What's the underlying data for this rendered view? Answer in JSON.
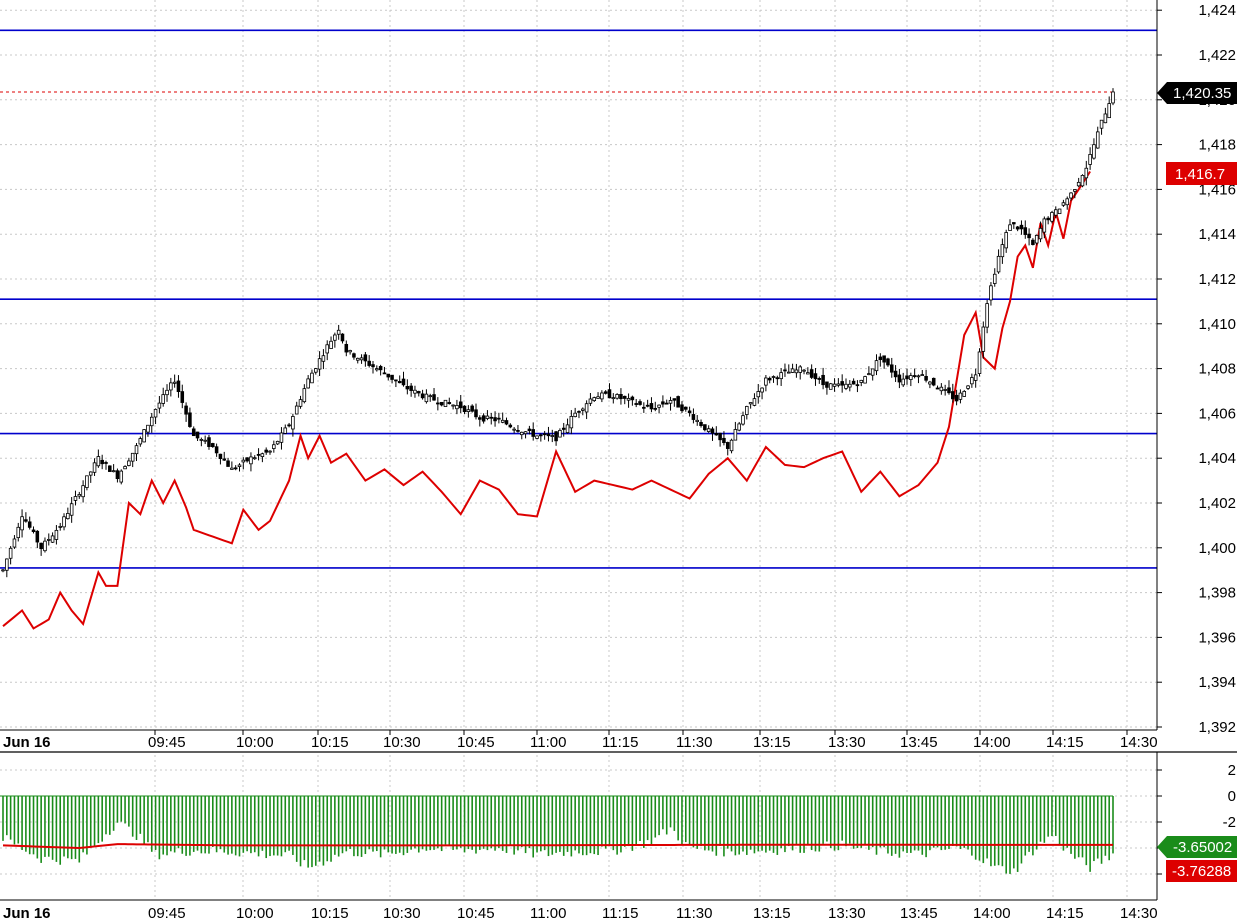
{
  "chart_data": [
    {
      "type": "candlestick",
      "date_label": "Jun 16",
      "x_tick_labels": [
        "09:45",
        "10:00",
        "10:15",
        "10:30",
        "10:45",
        "11:00",
        "11:15",
        "11:30",
        "13:15",
        "13:30",
        "13:45",
        "14:00",
        "14:15",
        "14:30"
      ],
      "y_tick_labels": [
        "1,424",
        "1,422",
        "1,420",
        "1,418",
        "1,416",
        "1,414",
        "1,412",
        "1,410",
        "1,408",
        "1,406",
        "1,404",
        "1,402",
        "1,400",
        "1,398",
        "1,396",
        "1,394",
        "1,392"
      ],
      "ylim": [
        1391,
        1425
      ],
      "grid": true,
      "horizontal_lines": [
        1423.1,
        1411.1,
        1405.1,
        1399.1
      ],
      "last_price": 1420.35,
      "last_price_label": "1,420.35",
      "close_anchors": [
        [
          0,
          1399.0
        ],
        [
          5,
          1401.5
        ],
        [
          10,
          1400.0
        ],
        [
          15,
          1401.0
        ],
        [
          20,
          1402.5
        ],
        [
          25,
          1404.0
        ],
        [
          30,
          1403.2
        ],
        [
          35,
          1404.5
        ],
        [
          40,
          1406.2
        ],
        [
          45,
          1407.5
        ],
        [
          48,
          1406.0
        ],
        [
          50,
          1405.0
        ],
        [
          55,
          1404.5
        ],
        [
          60,
          1403.5
        ],
        [
          65,
          1404.0
        ],
        [
          70,
          1404.3
        ],
        [
          75,
          1405.5
        ],
        [
          80,
          1407.5
        ],
        [
          85,
          1409.0
        ],
        [
          88,
          1409.8
        ],
        [
          90,
          1408.8
        ],
        [
          95,
          1408.3
        ],
        [
          100,
          1407.8
        ],
        [
          105,
          1407.2
        ],
        [
          110,
          1406.8
        ],
        [
          115,
          1406.5
        ],
        [
          120,
          1406.3
        ],
        [
          125,
          1405.8
        ],
        [
          130,
          1405.7
        ],
        [
          135,
          1405.3
        ],
        [
          140,
          1405.0
        ],
        [
          145,
          1404.9
        ],
        [
          150,
          1406.0
        ],
        [
          155,
          1406.8
        ],
        [
          160,
          1406.8
        ],
        [
          165,
          1406.5
        ],
        [
          170,
          1406.2
        ],
        [
          175,
          1406.6
        ],
        [
          180,
          1406.0
        ],
        [
          185,
          1405.2
        ],
        [
          190,
          1404.5
        ],
        [
          195,
          1406.2
        ],
        [
          200,
          1407.5
        ],
        [
          205,
          1407.8
        ],
        [
          210,
          1408.0
        ],
        [
          215,
          1407.3
        ],
        [
          220,
          1407.2
        ],
        [
          225,
          1407.4
        ],
        [
          230,
          1408.5
        ],
        [
          235,
          1407.5
        ],
        [
          240,
          1407.8
        ],
        [
          245,
          1407.2
        ],
        [
          250,
          1406.6
        ],
        [
          255,
          1407.8
        ],
        [
          258,
          1411.0
        ],
        [
          261,
          1413.0
        ],
        [
          264,
          1414.5
        ],
        [
          267,
          1414.2
        ],
        [
          270,
          1413.5
        ],
        [
          273,
          1414.6
        ],
        [
          276,
          1415.0
        ],
        [
          280,
          1415.8
        ],
        [
          284,
          1417.0
        ],
        [
          288,
          1419.0
        ],
        [
          291,
          1420.35
        ]
      ],
      "series": [
        {
          "name": "",
          "color": "#dd0000",
          "last_value_label": "1,416.7",
          "anchors": [
            [
              0,
              1396.5
            ],
            [
              5,
              1397.2
            ],
            [
              8,
              1396.4
            ],
            [
              12,
              1396.8
            ],
            [
              15,
              1398.0
            ],
            [
              18,
              1397.2
            ],
            [
              21,
              1396.6
            ],
            [
              25,
              1398.9
            ],
            [
              27,
              1398.3
            ],
            [
              30,
              1398.3
            ],
            [
              33,
              1402.0
            ],
            [
              36,
              1401.5
            ],
            [
              39,
              1403.0
            ],
            [
              42,
              1402.0
            ],
            [
              45,
              1403.0
            ],
            [
              48,
              1401.8
            ],
            [
              50,
              1400.8
            ],
            [
              55,
              1400.5
            ],
            [
              60,
              1400.2
            ],
            [
              63,
              1401.7
            ],
            [
              67,
              1400.8
            ],
            [
              70,
              1401.2
            ],
            [
              75,
              1403.0
            ],
            [
              78,
              1405.0
            ],
            [
              80,
              1404.0
            ],
            [
              83,
              1405.0
            ],
            [
              86,
              1403.8
            ],
            [
              90,
              1404.2
            ],
            [
              95,
              1403.0
            ],
            [
              100,
              1403.5
            ],
            [
              105,
              1402.8
            ],
            [
              110,
              1403.4
            ],
            [
              115,
              1402.5
            ],
            [
              120,
              1401.5
            ],
            [
              125,
              1403.0
            ],
            [
              130,
              1402.6
            ],
            [
              135,
              1401.5
            ],
            [
              140,
              1401.4
            ],
            [
              145,
              1404.3
            ],
            [
              150,
              1402.5
            ],
            [
              155,
              1403.0
            ],
            [
              160,
              1402.8
            ],
            [
              165,
              1402.6
            ],
            [
              170,
              1403.0
            ],
            [
              175,
              1402.6
            ],
            [
              180,
              1402.2
            ],
            [
              185,
              1403.3
            ],
            [
              190,
              1404.0
            ],
            [
              195,
              1403.0
            ],
            [
              200,
              1404.5
            ],
            [
              205,
              1403.7
            ],
            [
              210,
              1403.6
            ],
            [
              215,
              1404.0
            ],
            [
              220,
              1404.3
            ],
            [
              225,
              1402.5
            ],
            [
              230,
              1403.4
            ],
            [
              235,
              1402.3
            ],
            [
              240,
              1402.8
            ],
            [
              245,
              1403.8
            ],
            [
              248,
              1405.4
            ],
            [
              252,
              1409.5
            ],
            [
              255,
              1410.5
            ],
            [
              257,
              1408.5
            ],
            [
              260,
              1408.0
            ],
            [
              262,
              1409.8
            ],
            [
              264,
              1411.0
            ],
            [
              266,
              1413.0
            ],
            [
              268,
              1413.5
            ],
            [
              270,
              1412.5
            ],
            [
              272,
              1414.5
            ],
            [
              274,
              1413.5
            ],
            [
              276,
              1415.0
            ],
            [
              278,
              1413.8
            ],
            [
              280,
              1415.5
            ],
            [
              282,
              1416.0
            ],
            [
              285,
              1416.8
            ]
          ]
        }
      ]
    },
    {
      "type": "bar",
      "x_tick_labels": [
        "09:45",
        "10:00",
        "10:15",
        "10:30",
        "10:45",
        "11:00",
        "11:15",
        "11:30",
        "13:15",
        "13:30",
        "13:45",
        "14:00",
        "14:15",
        "14:30"
      ],
      "y_tick_labels": [
        "2",
        "0",
        "-2",
        "-4",
        "-6"
      ],
      "ylim": [
        -7,
        3
      ],
      "grid": true,
      "zero_line": true,
      "bar_color": "#1a8c1a",
      "bar_anchors": [
        [
          0,
          -3.2
        ],
        [
          10,
          -4.8
        ],
        [
          20,
          -5.0
        ],
        [
          25,
          -3.5
        ],
        [
          30,
          -2.0
        ],
        [
          35,
          -3.0
        ],
        [
          40,
          -4.5
        ],
        [
          50,
          -4.2
        ],
        [
          60,
          -4.3
        ],
        [
          70,
          -4.5
        ],
        [
          75,
          -4.6
        ],
        [
          80,
          -5.5
        ],
        [
          90,
          -4.3
        ],
        [
          100,
          -4.5
        ],
        [
          110,
          -4.0
        ],
        [
          120,
          -4.2
        ],
        [
          130,
          -4.0
        ],
        [
          140,
          -4.5
        ],
        [
          150,
          -4.3
        ],
        [
          160,
          -4.2
        ],
        [
          170,
          -3.5
        ],
        [
          175,
          -2.5
        ],
        [
          180,
          -4.0
        ],
        [
          190,
          -4.3
        ],
        [
          200,
          -4.2
        ],
        [
          210,
          -4.0
        ],
        [
          220,
          -3.8
        ],
        [
          230,
          -4.3
        ],
        [
          240,
          -4.5
        ],
        [
          250,
          -4.0
        ],
        [
          255,
          -4.5
        ],
        [
          260,
          -5.5
        ],
        [
          265,
          -5.8
        ],
        [
          270,
          -4.2
        ],
        [
          275,
          -3.0
        ],
        [
          280,
          -4.5
        ],
        [
          285,
          -5.5
        ],
        [
          291,
          -4.5
        ]
      ],
      "series": [
        {
          "name": "",
          "color": "#dd0000",
          "last_value_label": "-3.76288",
          "anchors": [
            [
              0,
              -3.8
            ],
            [
              10,
              -3.9
            ],
            [
              20,
              -4.0
            ],
            [
              30,
              -3.7
            ],
            [
              60,
              -3.8
            ],
            [
              120,
              -3.8
            ],
            [
              200,
              -3.75
            ],
            [
              291,
              -3.76
            ]
          ]
        }
      ],
      "last_bar_value_label": "-3.65002",
      "bottom_date_label": "Jun 16"
    }
  ]
}
